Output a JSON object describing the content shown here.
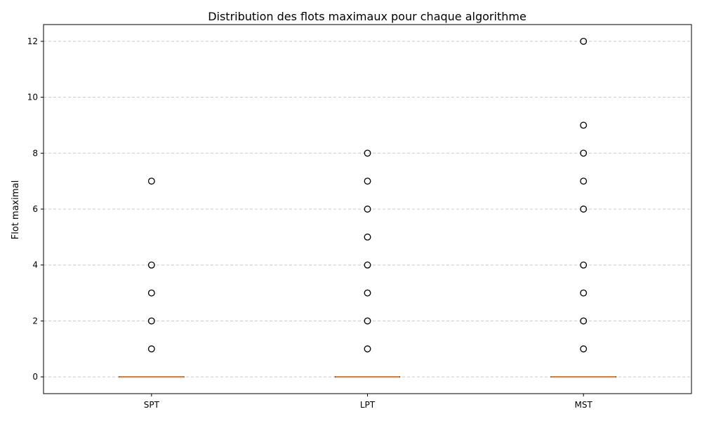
{
  "chart_data": {
    "type": "box",
    "title": "Distribution des flots maximaux pour chaque algorithme",
    "xlabel": "",
    "ylabel": "Flot maximal",
    "categories": [
      "SPT",
      "LPT",
      "MST"
    ],
    "ylim": [
      -0.6,
      12.6
    ],
    "yticks": [
      0,
      2,
      4,
      6,
      8,
      10,
      12
    ],
    "grid": "y-dashed",
    "boxes": [
      {
        "category": "SPT",
        "q1": 0,
        "median": 0,
        "q3": 0,
        "whisker_low": 0,
        "whisker_high": 0,
        "outliers": [
          1,
          2,
          3,
          4,
          7
        ]
      },
      {
        "category": "LPT",
        "q1": 0,
        "median": 0,
        "q3": 0,
        "whisker_low": 0,
        "whisker_high": 0,
        "outliers": [
          1,
          2,
          3,
          4,
          5,
          6,
          7,
          8
        ]
      },
      {
        "category": "MST",
        "q1": 0,
        "median": 0,
        "q3": 0,
        "whisker_low": 0,
        "whisker_high": 0,
        "outliers": [
          1,
          2,
          3,
          4,
          6,
          7,
          8,
          9,
          12
        ]
      }
    ],
    "colors": {
      "median": "#e08b3e",
      "box": "#000000",
      "grid": "#c8c8c8",
      "outlier": "#000000"
    }
  }
}
